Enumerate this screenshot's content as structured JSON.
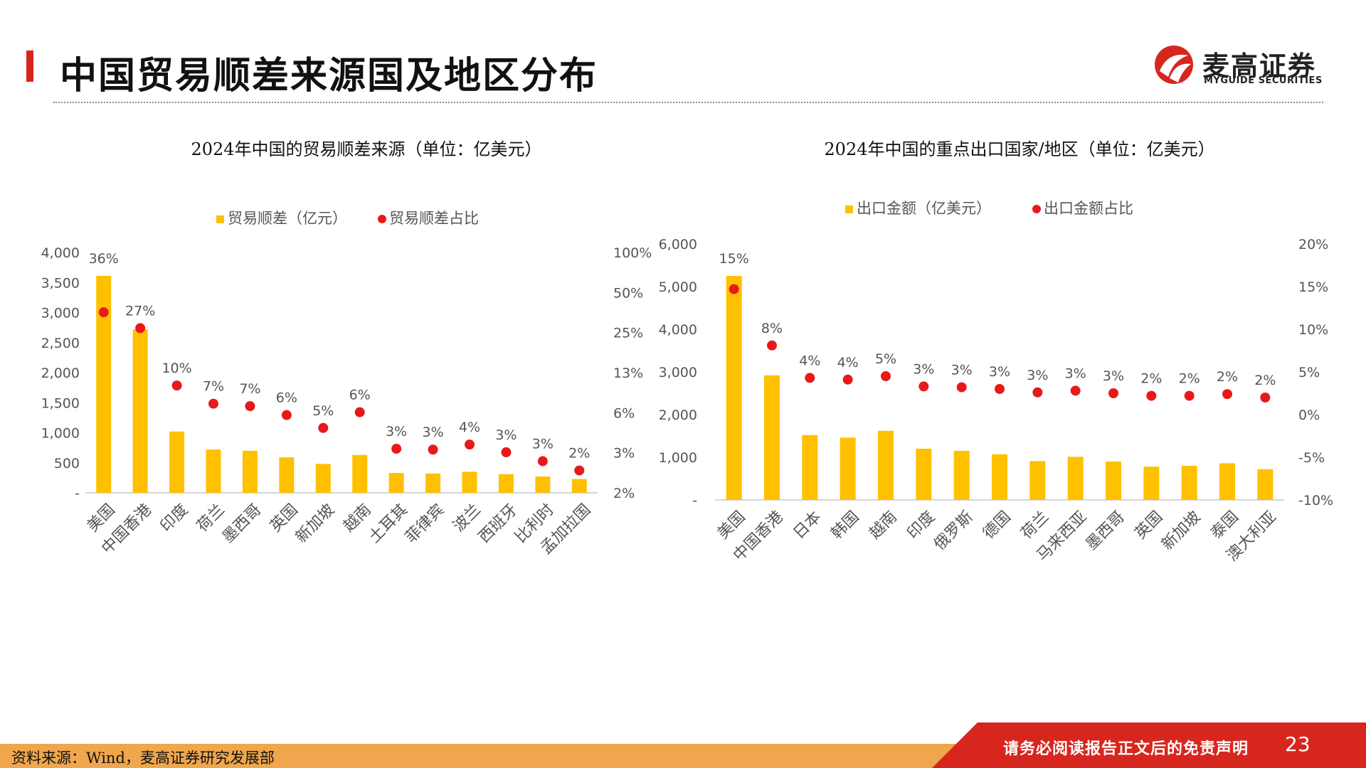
{
  "header": {
    "title": "中国贸易顺差来源国及地区分布",
    "logo_cn": "麦高证券",
    "logo_en": "MYGUIDE SECURITIES"
  },
  "colors": {
    "bar": "#ffc000",
    "dot": "#e8191a",
    "accent": "#d7261e",
    "footer_orange": "#f0a64c"
  },
  "chart_data": [
    {
      "type": "bar",
      "title": "2024年中国的贸易顺差来源（单位：亿美元）",
      "legend": [
        "贸易顺差（亿元）",
        "贸易顺差占比"
      ],
      "legend_position": "top",
      "categories": [
        "美国",
        "中国香港",
        "印度",
        "荷兰",
        "墨西哥",
        "英国",
        "新加坡",
        "越南",
        "土耳其",
        "菲律宾",
        "波兰",
        "西班牙",
        "比利时",
        "孟加拉国"
      ],
      "series": [
        {
          "name": "贸易顺差（亿元）",
          "axis": "left",
          "values": [
            3610,
            2720,
            1020,
            720,
            700,
            590,
            480,
            630,
            330,
            320,
            350,
            310,
            270,
            230
          ]
        },
        {
          "name": "贸易顺差占比",
          "axis": "right",
          "type": "scatter",
          "labels": [
            "36%",
            "27%",
            "10%",
            "7%",
            "7%",
            "6%",
            "5%",
            "6%",
            "3%",
            "3%",
            "4%",
            "3%",
            "3%",
            "2%"
          ],
          "values": [
            35.5,
            27,
            10,
            7.3,
            7,
            6,
            4.8,
            6.3,
            3.35,
            3.3,
            3.6,
            3.15,
            2.7,
            2.3
          ]
        }
      ],
      "y_left": {
        "ticks": [
          "-",
          "500",
          "1,000",
          "1,500",
          "2,000",
          "2,500",
          "3,000",
          "3,500",
          "4,000"
        ],
        "values": [
          0,
          500,
          1000,
          1500,
          2000,
          2500,
          3000,
          3500,
          4000
        ]
      },
      "y_right": {
        "scale": "log",
        "ticks": [
          "2%",
          "3%",
          "6%",
          "13%",
          "25%",
          "50%",
          "100%"
        ],
        "values": [
          1.5625,
          3.125,
          6.25,
          12.5,
          25,
          50,
          100
        ]
      },
      "grid": false
    },
    {
      "type": "bar",
      "title": "2024年中国的重点出口国家/地区（单位：亿美元）",
      "legend": [
        "出口金额（亿美元）",
        "出口金额占比"
      ],
      "legend_position": "top",
      "categories": [
        "美国",
        "中国香港",
        "日本",
        "韩国",
        "越南",
        "印度",
        "俄罗斯",
        "德国",
        "荷兰",
        "马来西亚",
        "墨西哥",
        "英国",
        "新加坡",
        "泰国",
        "澳大利亚"
      ],
      "series": [
        {
          "name": "出口金额（亿美元）",
          "axis": "left",
          "values": [
            5250,
            2920,
            1520,
            1460,
            1620,
            1200,
            1150,
            1070,
            910,
            1010,
            900,
            780,
            800,
            860,
            720
          ]
        },
        {
          "name": "出口金额占比",
          "axis": "right",
          "type": "scatter",
          "labels": [
            "15%",
            "8%",
            "4%",
            "4%",
            "5%",
            "3%",
            "3%",
            "3%",
            "3%",
            "3%",
            "3%",
            "2%",
            "2%",
            "2%",
            "2%"
          ],
          "values": [
            14.7,
            8.1,
            4.3,
            4.1,
            4.5,
            3.3,
            3.2,
            3.0,
            2.6,
            2.8,
            2.5,
            2.2,
            2.2,
            2.4,
            2.0
          ]
        }
      ],
      "y_left": {
        "ticks": [
          "-",
          "1,000",
          "2,000",
          "3,000",
          "4,000",
          "5,000",
          "6,000"
        ],
        "values": [
          0,
          1000,
          2000,
          3000,
          4000,
          5000,
          6000
        ]
      },
      "y_right": {
        "scale": "linear",
        "ticks": [
          "-10%",
          "-5%",
          "0%",
          "5%",
          "10%",
          "15%",
          "20%"
        ],
        "values": [
          -10,
          -5,
          0,
          5,
          10,
          15,
          20
        ]
      },
      "grid": false
    }
  ],
  "footer": {
    "source": "资料来源：Wind，麦高证券研究发展部",
    "disclaimer": "请务必阅读报告正文后的免责声明",
    "page": "23"
  }
}
